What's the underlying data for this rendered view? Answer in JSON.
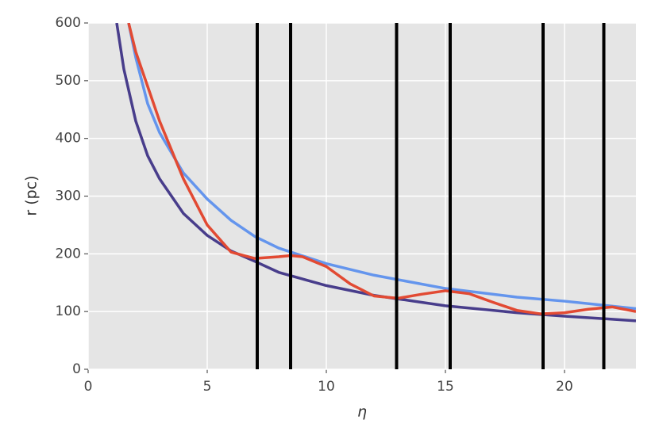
{
  "chart_data": {
    "type": "line",
    "xlabel": "η",
    "ylabel": "r (pc)",
    "xlim": [
      0,
      23
    ],
    "ylim": [
      0,
      600
    ],
    "xticks": [
      0,
      5,
      10,
      15,
      20
    ],
    "yticks": [
      0,
      100,
      200,
      300,
      400,
      500,
      600
    ],
    "grid": true,
    "series": [
      {
        "color": "#6495ED",
        "x": [
          1.7,
          2,
          2.5,
          3,
          4,
          5,
          6,
          7,
          8,
          10,
          12,
          15,
          18,
          20,
          23
        ],
        "values": [
          600,
          540,
          460,
          410,
          340,
          295,
          258,
          230,
          210,
          183,
          163,
          140,
          125,
          118,
          105
        ]
      },
      {
        "color": "#483D8B",
        "x": [
          1.2,
          1.5,
          2,
          2.5,
          3,
          4,
          5,
          6,
          7,
          8,
          10,
          12,
          15,
          18,
          20,
          23
        ],
        "values": [
          600,
          520,
          430,
          370,
          330,
          270,
          232,
          205,
          187,
          168,
          145,
          128,
          110,
          98,
          92,
          84
        ]
      },
      {
        "color": "#E24A33",
        "x": [
          1.7,
          2,
          3,
          4,
          5,
          6,
          7,
          8,
          8.5,
          9,
          10,
          11,
          12,
          13,
          14,
          15,
          16,
          17,
          18,
          19,
          20,
          21,
          22,
          23
        ],
        "values": [
          600,
          550,
          430,
          330,
          250,
          203,
          192,
          195,
          197,
          195,
          178,
          148,
          127,
          123,
          130,
          136,
          131,
          116,
          102,
          96,
          98,
          104,
          108,
          100
        ]
      }
    ],
    "vlines": [
      7.1,
      8.5,
      12.95,
      15.2,
      19.1,
      21.65
    ],
    "vline_color": "#000000"
  }
}
